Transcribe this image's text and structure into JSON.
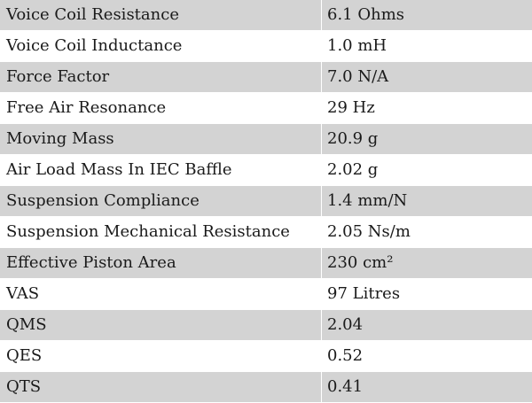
{
  "specs": [
    {
      "label": "Voice Coil Resistance",
      "value": "6.1 Ohms"
    },
    {
      "label": "Voice Coil Inductance",
      "value": "1.0 mH"
    },
    {
      "label": "Force Factor",
      "value": "7.0 N/A"
    },
    {
      "label": "Free Air Resonance",
      "value": "29 Hz"
    },
    {
      "label": "Moving Mass",
      "value": "20.9 g"
    },
    {
      "label": "Air Load Mass In IEC Baffle",
      "value": "2.02 g"
    },
    {
      "label": "Suspension Compliance",
      "value": "1.4 mm/N"
    },
    {
      "label": "Suspension Mechanical Resistance",
      "value": "2.05 Ns/m"
    },
    {
      "label": "Effective Piston Area",
      "value": "230 cm²"
    },
    {
      "label": "VAS",
      "value": "97 Litres"
    },
    {
      "label": "QMS",
      "value": "2.04"
    },
    {
      "label": "QES",
      "value": "0.52"
    },
    {
      "label": "QTS",
      "value": "0.41"
    }
  ],
  "colors": {
    "row_shaded": "#d3d3d3",
    "row_plain": "#ffffff",
    "text": "#1a1a1a"
  }
}
